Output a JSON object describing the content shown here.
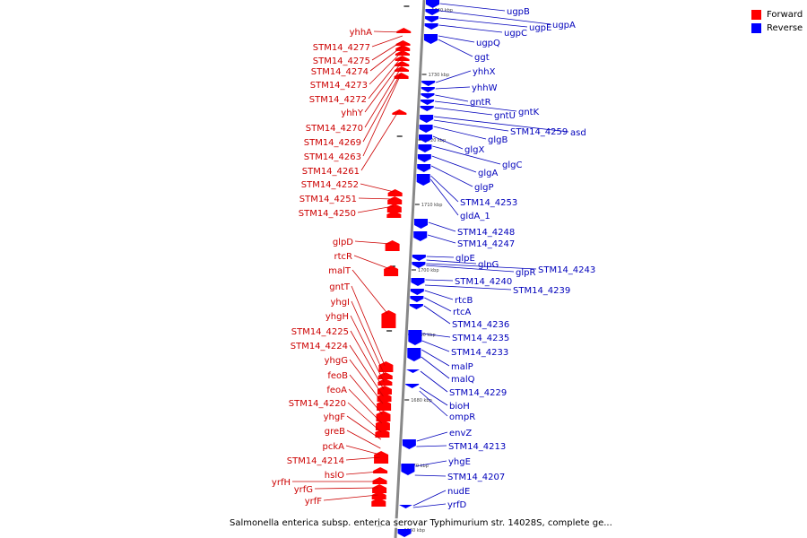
{
  "colors": {
    "forward": "#ff0000",
    "reverse": "#0000ff",
    "forward_label": "#cc0000",
    "reverse_label": "#0000bb",
    "backbone": "#888888"
  },
  "legend": [
    {
      "label": "Forward",
      "color": "#ff0000"
    },
    {
      "label": "Reverse",
      "color": "#0000ff"
    }
  ],
  "caption": "Salmonella enterica subsp. enterica serovar Typhimurium str. 14028S, complete ge...",
  "scale_ticks": [
    "1740 kbp",
    "1730 kbp",
    "1720 kbp",
    "1710 kbp",
    "1700 kbp",
    "1690 kbp",
    "1680 kbp",
    "1670 kbp",
    "1660 kbp"
  ],
  "forward_genes": [
    "yhhA",
    "STM14_4277",
    "STM14_4275",
    "STM14_4274",
    "STM14_4273",
    "STM14_4272",
    "yhhY",
    "STM14_4270",
    "STM14_4269",
    "STM14_4263",
    "STM14_4261",
    "STM14_4252",
    "STM14_4251",
    "STM14_4250",
    "glpD",
    "rtcR",
    "malT",
    "gntT",
    "yhgI",
    "yhgH",
    "STM14_4225",
    "STM14_4224",
    "yhgG",
    "feoB",
    "feoA",
    "STM14_4220",
    "yhgF",
    "greB",
    "pckA",
    "STM14_4214",
    "hslO",
    "yrfH",
    "yrfG",
    "yrfF"
  ],
  "reverse_genes": [
    "ugpB",
    "ugpA",
    "ugpE",
    "ugpC",
    "ugpQ",
    "ggt",
    "yhhX",
    "yhhW",
    "gntR",
    "gntK",
    "gntU",
    "asd",
    "STM14_4259",
    "glgB",
    "glgX",
    "glgC",
    "glgA",
    "glgP",
    "STM14_4253",
    "gldA_1",
    "STM14_4248",
    "STM14_4247",
    "glpE",
    "STM14_4243",
    "glpR",
    "glpG",
    "STM14_4240",
    "STM14_4239",
    "rtcB",
    "rtcA",
    "STM14_4236",
    "STM14_4235",
    "STM14_4233",
    "malP",
    "malQ",
    "STM14_4229",
    "bioH",
    "ompR",
    "envZ",
    "STM14_4213",
    "yhgE",
    "STM14_4207",
    "nudE",
    "yrfD"
  ]
}
